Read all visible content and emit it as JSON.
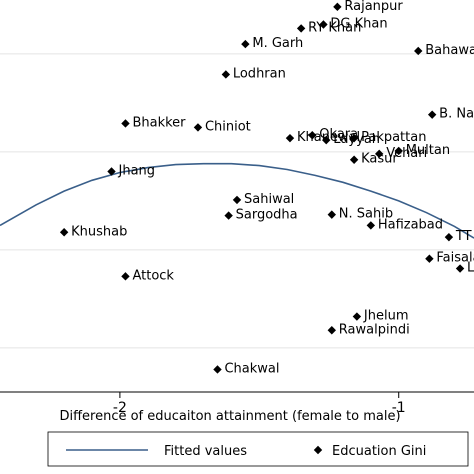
{
  "chart_data": {
    "type": "scatter",
    "xlabel": "Difference of educaiton attainment (female to male)",
    "ylabel": "",
    "x_ticks": [
      -2,
      -1
    ],
    "x_tick_labels": [
      "-2",
      "-1"
    ],
    "xlim": [
      -2.43,
      -0.73
    ],
    "ylim": [
      0.055,
      0.455
    ],
    "grid": "horizontal",
    "legend_position": "bottom",
    "series": [
      {
        "name": "Education Gini",
        "marker": "diamond",
        "color": "#000000",
        "points": [
          {
            "label": "Rajanpur",
            "x": -1.22,
            "y": 0.448
          },
          {
            "label": "DG Khan",
            "x": -1.27,
            "y": 0.43
          },
          {
            "label": "RY Khan",
            "x": -1.35,
            "y": 0.426
          },
          {
            "label": "M. Garh",
            "x": -1.55,
            "y": 0.41
          },
          {
            "label": "Bahawalnagar",
            "x": -0.93,
            "y": 0.403
          },
          {
            "label": "Lodhran",
            "x": -1.62,
            "y": 0.379
          },
          {
            "label": "B. Nagar",
            "x": -0.88,
            "y": 0.338
          },
          {
            "label": "Bhakker",
            "x": -1.98,
            "y": 0.329
          },
          {
            "label": "Chiniot",
            "x": -1.72,
            "y": 0.325
          },
          {
            "label": "Okara",
            "x": -1.31,
            "y": 0.317
          },
          {
            "label": "Pakpattan",
            "x": -1.16,
            "y": 0.314
          },
          {
            "label": "Layyah",
            "x": -1.26,
            "y": 0.312
          },
          {
            "label": "Khanewal",
            "x": -1.39,
            "y": 0.314
          },
          {
            "label": "Multan",
            "x": -1.0,
            "y": 0.301
          },
          {
            "label": "Vehari",
            "x": -1.07,
            "y": 0.298
          },
          {
            "label": "Kasur",
            "x": -1.16,
            "y": 0.292
          },
          {
            "label": "Jhang",
            "x": -2.03,
            "y": 0.28
          },
          {
            "label": "Sahiwal",
            "x": -1.58,
            "y": 0.251
          },
          {
            "label": "Sargodha",
            "x": -1.61,
            "y": 0.235
          },
          {
            "label": "N. Sahib",
            "x": -1.24,
            "y": 0.236
          },
          {
            "label": "Hafizabad",
            "x": -1.1,
            "y": 0.225
          },
          {
            "label": "Khushab",
            "x": -2.2,
            "y": 0.218
          },
          {
            "label": "TT Singh",
            "x": -0.82,
            "y": 0.213
          },
          {
            "label": "Faisalabad",
            "x": -0.89,
            "y": 0.191
          },
          {
            "label": "Lahore",
            "x": -0.78,
            "y": 0.181
          },
          {
            "label": "Attock",
            "x": -1.98,
            "y": 0.173
          },
          {
            "label": "Jhelum",
            "x": -1.15,
            "y": 0.132
          },
          {
            "label": "Rawalpindi",
            "x": -1.24,
            "y": 0.118
          },
          {
            "label": "Chakwal",
            "x": -1.65,
            "y": 0.078
          }
        ]
      },
      {
        "name": "Fitted values",
        "type": "line",
        "color": "#3a5f8a",
        "x": [
          -2.43,
          -2.3,
          -2.2,
          -2.1,
          -2.0,
          -1.9,
          -1.8,
          -1.7,
          -1.6,
          -1.5,
          -1.4,
          -1.3,
          -1.2,
          -1.1,
          -1.0,
          -0.9,
          -0.8,
          -0.73
        ],
        "y": [
          0.225,
          0.246,
          0.26,
          0.271,
          0.279,
          0.284,
          0.287,
          0.288,
          0.288,
          0.286,
          0.282,
          0.276,
          0.269,
          0.26,
          0.25,
          0.238,
          0.224,
          0.212
        ]
      }
    ]
  },
  "legend": {
    "fitted_label": "Fitted values",
    "scatter_label": "Edcuation Gini"
  }
}
